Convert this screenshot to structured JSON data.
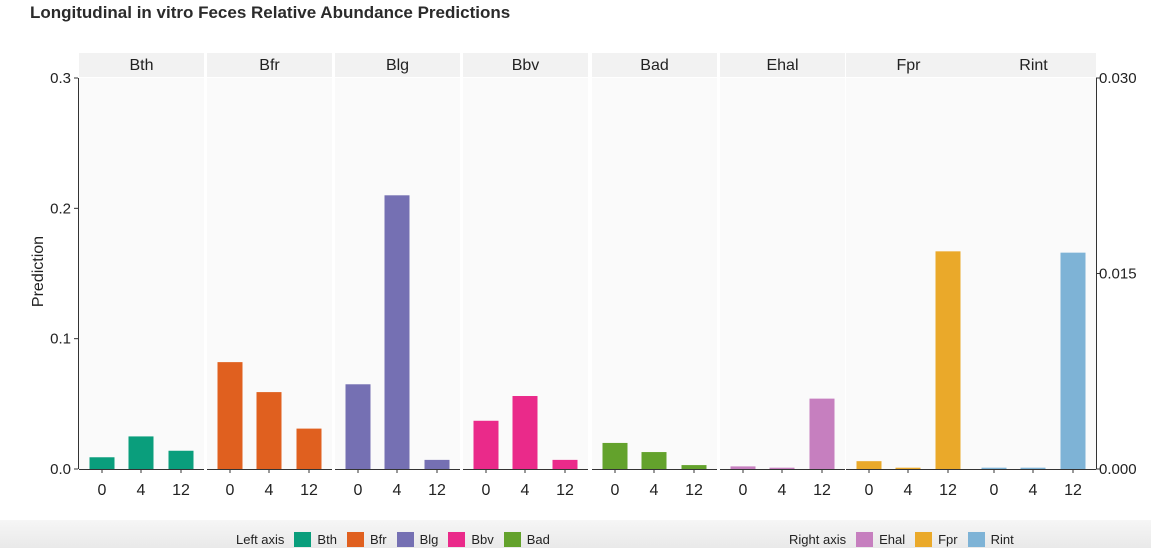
{
  "title": "Longitudinal in vitro Feces Relative Abundance Predictions",
  "chart_data": {
    "type": "bar",
    "ylabel": "Prediction",
    "left_axis": {
      "ylim": [
        0,
        0.3
      ],
      "ticks": [
        "0.0",
        "0.1",
        "0.2",
        "0.3"
      ],
      "tick_values": [
        0,
        0.1,
        0.2,
        0.3
      ]
    },
    "right_axis": {
      "ylim": [
        0,
        0.03
      ],
      "ticks": [
        "0.000",
        "0.015",
        "0.030"
      ],
      "tick_values": [
        0,
        0.015,
        0.03
      ]
    },
    "categories": [
      "0",
      "4",
      "12"
    ],
    "panels": [
      {
        "name": "Bth",
        "axis": "left",
        "color": "#0a9e7c",
        "values": [
          0.009,
          0.025,
          0.014
        ]
      },
      {
        "name": "Bfr",
        "axis": "left",
        "color": "#e0601f",
        "values": [
          0.082,
          0.059,
          0.031
        ]
      },
      {
        "name": "Blg",
        "axis": "left",
        "color": "#7570b3",
        "values": [
          0.065,
          0.21,
          0.007
        ]
      },
      {
        "name": "Bbv",
        "axis": "left",
        "color": "#ea2a8a",
        "values": [
          0.037,
          0.056,
          0.007
        ]
      },
      {
        "name": "Bad",
        "axis": "left",
        "color": "#63a22c",
        "values": [
          0.02,
          0.013,
          0.003
        ]
      },
      {
        "name": "Ehal",
        "axis": "right",
        "color": "#c67fbf",
        "values": [
          0.0002,
          0.0001,
          0.0054
        ]
      },
      {
        "name": "Fpr",
        "axis": "right",
        "color": "#eaa92a",
        "values": [
          0.0006,
          0.0001,
          0.0167
        ]
      },
      {
        "name": "Rint",
        "axis": "right",
        "color": "#7eb3d6",
        "values": [
          0.0001,
          0.0001,
          0.0166
        ]
      }
    ],
    "legend": {
      "placement": "bottom",
      "left_title": "Left axis",
      "right_title": "Right axis",
      "left_items": [
        "Bth",
        "Bfr",
        "Blg",
        "Bbv",
        "Bad"
      ],
      "right_items": [
        "Ehal",
        "Fpr",
        "Rint"
      ]
    },
    "grid": false
  }
}
